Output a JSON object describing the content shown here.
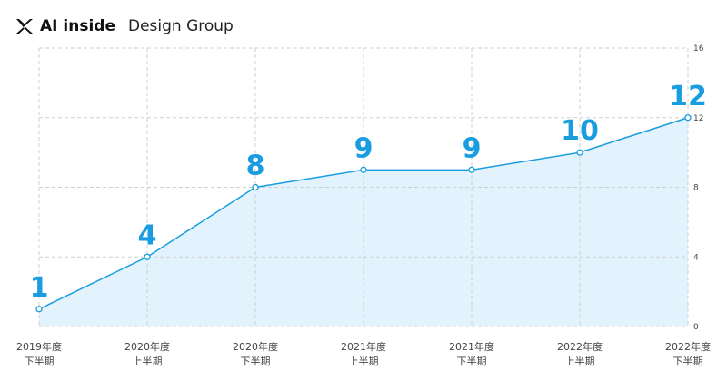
{
  "header": {
    "brand": "AI inside",
    "subtitle": "Design Group",
    "logo_icon": "x-logo-icon"
  },
  "colors": {
    "line": "#1a9de0",
    "area": "#e2f3fd",
    "label": "#1a9de0",
    "grid": "#cfcfcf",
    "axis_text": "#444444"
  },
  "chart_data": {
    "type": "area",
    "title": "",
    "xlabel": "",
    "ylabel": "",
    "categories": [
      [
        "2019年度",
        "下半期"
      ],
      [
        "2020年度",
        "上半期"
      ],
      [
        "2020年度",
        "下半期"
      ],
      [
        "2021年度",
        "上半期"
      ],
      [
        "2021年度",
        "下半期"
      ],
      [
        "2022年度",
        "上半期"
      ],
      [
        "2022年度",
        "下半期"
      ]
    ],
    "values": [
      1,
      4,
      8,
      9,
      9,
      10,
      12
    ],
    "ylim": [
      0,
      16
    ],
    "yticks": [
      0,
      4,
      8,
      12,
      16
    ],
    "y_axis_side": "right",
    "grid": true,
    "data_labels": true
  }
}
